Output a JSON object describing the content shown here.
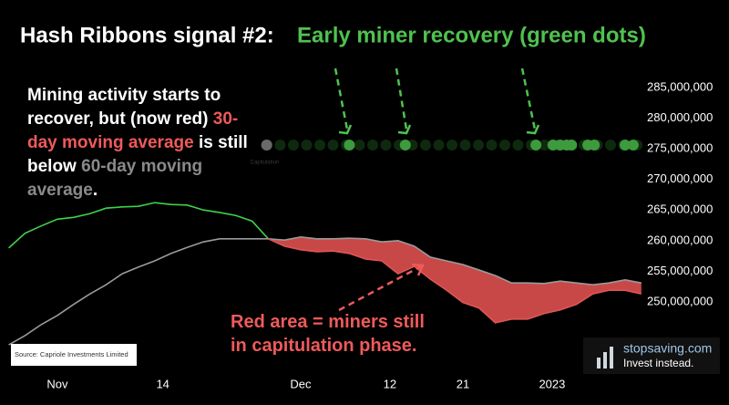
{
  "chart_data": {
    "type": "line",
    "title": "Hash Ribbons signal #2:",
    "subtitle": "Early miner recovery (green dots)",
    "annotations": [
      {
        "segments": [
          {
            "text": "Mining activity starts to recover, but (now red) ",
            "color": "#ffffff"
          },
          {
            "text": "30-day moving average",
            "color": "#ef5a5a"
          },
          {
            "text": " is still below ",
            "color": "#ffffff"
          },
          {
            "text": "60-day moving average",
            "color": "#8a8a8a"
          },
          {
            "text": ".",
            "color": "#ffffff"
          }
        ]
      },
      {
        "segments": [
          {
            "text": "Red area = miners still in capitulation phase.",
            "color": "#ef5a5a"
          }
        ]
      }
    ],
    "dot_label": "Capitulation",
    "source": "Source: Capriole Investments Limited",
    "x": [
      -6,
      -4,
      -2,
      0,
      2,
      4,
      6,
      8,
      10,
      12,
      14,
      16,
      18,
      20,
      22,
      24,
      26,
      28,
      30,
      32,
      34,
      36,
      38,
      40,
      42,
      44,
      46,
      48,
      50,
      52,
      54,
      56,
      58,
      60,
      62,
      64,
      66,
      68,
      70,
      72
    ],
    "xlim": [
      -6.2,
      72.1
    ],
    "xticks": [
      {
        "value": 0,
        "label": "Nov"
      },
      {
        "value": 13,
        "label": "14"
      },
      {
        "value": 30,
        "label": "Dec"
      },
      {
        "value": 41,
        "label": "12"
      },
      {
        "value": 50,
        "label": "21"
      },
      {
        "value": 61,
        "label": "2023"
      }
    ],
    "ylim": [
      240000000,
      292000000
    ],
    "yticks": [
      {
        "value": 250000000,
        "label": "250,000,000"
      },
      {
        "value": 255000000,
        "label": "255,000,000"
      },
      {
        "value": 260000000,
        "label": "260,000,000"
      },
      {
        "value": 265000000,
        "label": "265,000,000"
      },
      {
        "value": 270000000,
        "label": "270,000,000"
      },
      {
        "value": 275000000,
        "label": "275,000,000"
      },
      {
        "value": 280000000,
        "label": "280,000,000"
      },
      {
        "value": 285000000,
        "label": "285,000,000"
      }
    ],
    "series": [
      {
        "color": "#3ed14b",
        "values": [
          258800000,
          261200000,
          262400000,
          263500000,
          263800000,
          264400000,
          265300000,
          265500000,
          265600000,
          266200000,
          265900000,
          265800000,
          265000000,
          264600000,
          264100000,
          263200000,
          260300000,
          null,
          null,
          null,
          null,
          null,
          null,
          null,
          null,
          null,
          null,
          null,
          null,
          null,
          null,
          null,
          null,
          null,
          null,
          null,
          null,
          null,
          null,
          null
        ]
      },
      {
        "color": "#9a9a9a",
        "values": [
          243000000,
          244500000,
          246300000,
          247800000,
          249600000,
          251300000,
          252800000,
          254600000,
          255700000,
          256700000,
          257900000,
          258900000,
          259800000,
          260300000,
          260300000,
          260300000,
          260300000,
          260100000,
          260600000,
          260300000,
          260300000,
          260400000,
          260300000,
          259800000,
          260000000,
          259100000,
          257300000,
          256700000,
          256100000,
          255200000,
          254300000,
          253100000,
          253100000,
          253000000,
          253400000,
          253100000,
          252800000,
          253100000,
          253600000,
          253100000
        ]
      },
      {
        "color": "#e05555",
        "fill": "#c84848",
        "values": [
          null,
          null,
          null,
          null,
          null,
          null,
          null,
          null,
          null,
          null,
          null,
          null,
          null,
          null,
          null,
          null,
          260300000,
          259100000,
          258500000,
          258200000,
          258300000,
          257900000,
          257000000,
          256700000,
          254600000,
          255800000,
          253700000,
          251900000,
          249900000,
          249000000,
          246600000,
          247200000,
          247200000,
          248100000,
          248700000,
          249600000,
          251300000,
          251900000,
          251900000,
          251300000
        ]
      }
    ],
    "dots": [
      {
        "x": 25.8,
        "value": 275600000,
        "color": "#6a6a6a"
      },
      {
        "x": 36.0,
        "value": 275600000,
        "color": "#3d9a3d"
      },
      {
        "x": 42.9,
        "value": 275600000,
        "color": "#3d9a3d"
      },
      {
        "x": 59.0,
        "value": 275600000,
        "color": "#3d9a3d"
      },
      {
        "x": 61.1,
        "value": 275600000,
        "color": "#3d9a3d"
      },
      {
        "x": 62.0,
        "value": 275600000,
        "color": "#3d9a3d"
      },
      {
        "x": 62.8,
        "value": 275600000,
        "color": "#3d9a3d"
      },
      {
        "x": 63.4,
        "value": 275600000,
        "color": "#3d9a3d"
      },
      {
        "x": 65.4,
        "value": 275600000,
        "color": "#3d9a3d"
      },
      {
        "x": 66.2,
        "value": 275600000,
        "color": "#3d9a3d"
      },
      {
        "x": 70.0,
        "value": 275600000,
        "color": "#3d9a3d"
      },
      {
        "x": 71.0,
        "value": 275600000,
        "color": "#3d9a3d"
      }
    ]
  },
  "branding": {
    "name": "stopsaving.com",
    "tagline": "Invest instead."
  }
}
